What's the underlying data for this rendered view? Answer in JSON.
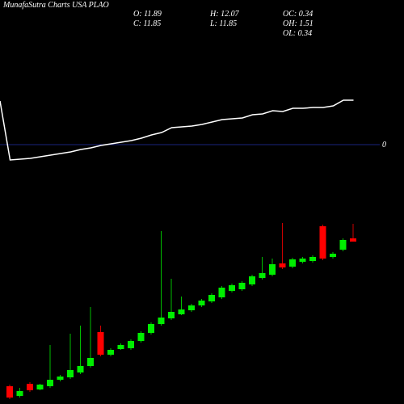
{
  "chart_data": [
    {
      "type": "line",
      "color": "#ffffff",
      "values": [
        54,
        -19,
        -18,
        -17,
        -15,
        -13,
        -11,
        -9,
        -6,
        -4,
        -1,
        1,
        3,
        5,
        8,
        12,
        15,
        21,
        22,
        23,
        25,
        28,
        31,
        32,
        33,
        37,
        38,
        42,
        41,
        45,
        45,
        46,
        46,
        48,
        55,
        55
      ],
      "ylim": [
        -31,
        69
      ],
      "yticks": [
        0
      ],
      "grid": true,
      "grid_color": "#1a237e"
    },
    {
      "type": "candlestick",
      "title": "MunafaSutra Charts USA PLAO",
      "up_color": "#00ee00",
      "down_color": "#ff0000",
      "ylim": [
        9.84,
        12.34
      ],
      "stats": [
        {
          "label": "O:",
          "value": 11.89
        },
        {
          "label": "H:",
          "value": 12.07
        },
        {
          "label": "OC:",
          "value": 0.34
        },
        {
          "label": "C:",
          "value": 11.85
        },
        {
          "label": "L:",
          "value": 11.85
        },
        {
          "label": "OH:",
          "value": 1.51
        },
        {
          "label": "OL:",
          "value": 0.34
        }
      ],
      "open": [
        10.06,
        9.94,
        10.09,
        10.02,
        10.06,
        10.14,
        10.17,
        10.23,
        10.31,
        10.73,
        10.45,
        10.52,
        10.53,
        10.62,
        10.72,
        10.83,
        10.9,
        10.95,
        11.0,
        11.06,
        11.11,
        11.16,
        11.24,
        11.26,
        11.32,
        11.4,
        11.44,
        11.58,
        11.54,
        11.6,
        11.61,
        12.04,
        11.66,
        11.75,
        11.89
      ],
      "high": [
        10.08,
        10.04,
        10.11,
        10.09,
        10.57,
        10.2,
        10.71,
        10.81,
        11.04,
        10.81,
        10.53,
        10.59,
        10.64,
        10.74,
        10.85,
        11.98,
        11.39,
        11.17,
        11.08,
        11.14,
        11.21,
        11.3,
        11.33,
        11.36,
        11.44,
        11.66,
        11.64,
        12.08,
        11.65,
        11.66,
        11.68,
        12.06,
        11.72,
        11.89,
        12.07
      ],
      "low": [
        9.9,
        9.92,
        9.99,
        10.01,
        10.04,
        10.12,
        10.15,
        10.21,
        10.29,
        10.43,
        10.43,
        10.51,
        10.51,
        10.6,
        10.7,
        10.81,
        10.88,
        10.94,
        10.98,
        11.04,
        11.09,
        11.14,
        11.22,
        11.24,
        11.3,
        11.38,
        11.42,
        11.51,
        11.52,
        11.58,
        11.59,
        11.62,
        11.64,
        11.73,
        11.85
      ],
      "close": [
        9.92,
        10.0,
        10.01,
        10.08,
        10.14,
        10.18,
        10.26,
        10.31,
        10.41,
        10.45,
        10.51,
        10.57,
        10.62,
        10.72,
        10.83,
        10.91,
        10.98,
        11.01,
        11.06,
        11.12,
        11.19,
        11.28,
        11.31,
        11.34,
        11.42,
        11.46,
        11.57,
        11.53,
        11.63,
        11.64,
        11.66,
        11.64,
        11.7,
        11.87,
        11.85
      ]
    }
  ]
}
